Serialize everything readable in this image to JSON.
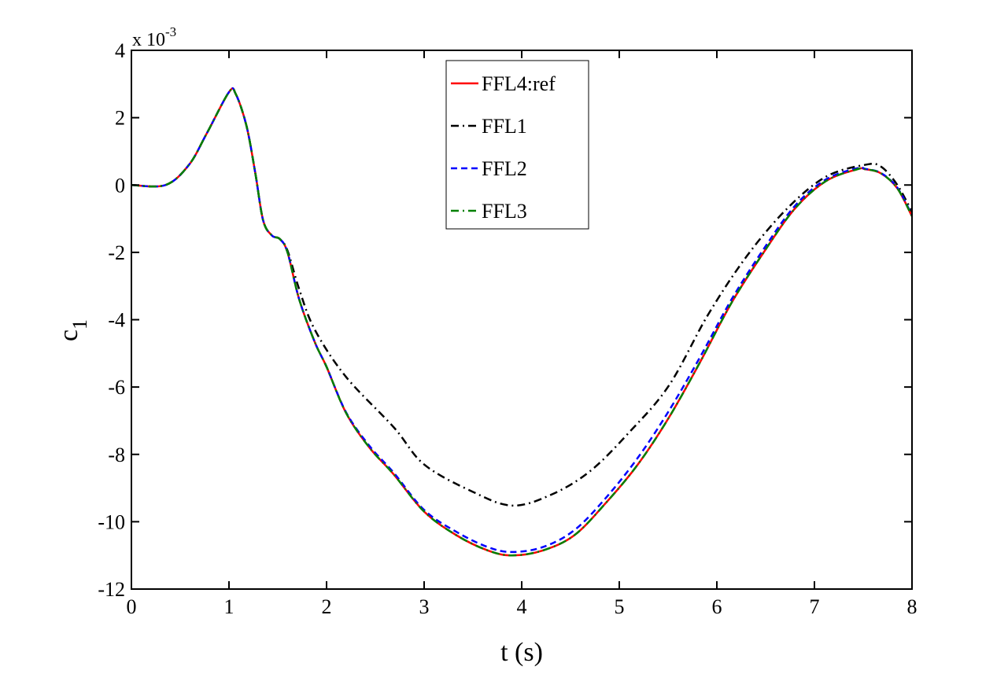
{
  "chart_data": {
    "type": "line",
    "title": "",
    "xlabel": "t (s)",
    "ylabel": "c",
    "ylabel_subscript": "1",
    "y_multiplier": {
      "prefix": "x 10",
      "exponent": "-3"
    },
    "xlim": [
      0,
      8
    ],
    "ylim": [
      -12,
      4
    ],
    "xticks": [
      0,
      1,
      2,
      3,
      4,
      5,
      6,
      7,
      8
    ],
    "yticks": [
      4,
      2,
      0,
      -2,
      -4,
      -6,
      -8,
      -10,
      -12
    ],
    "grid": false,
    "legend_placement": "top-center",
    "series": [
      {
        "name": "FFL4:ref",
        "color": "#ff0000",
        "style": "solid",
        "x": [
          0,
          0.35,
          0.59,
          0.77,
          1.0,
          1.07,
          1.18,
          1.27,
          1.35,
          1.44,
          1.52,
          1.6,
          1.72,
          1.88,
          2.0,
          2.2,
          2.44,
          2.69,
          3.0,
          3.33,
          3.65,
          3.9,
          4.22,
          4.54,
          4.86,
          5.19,
          5.51,
          5.83,
          6.15,
          6.48,
          6.8,
          7.12,
          7.44,
          7.52,
          7.68,
          7.85,
          8.0
        ],
        "y": [
          0,
          0,
          0.6,
          1.52,
          2.76,
          2.7,
          1.75,
          0.35,
          -1.05,
          -1.5,
          -1.6,
          -2.0,
          -3.4,
          -4.67,
          -5.4,
          -6.77,
          -7.8,
          -8.6,
          -9.7,
          -10.4,
          -10.85,
          -11.0,
          -10.85,
          -10.4,
          -9.45,
          -8.3,
          -6.9,
          -5.25,
          -3.5,
          -2.0,
          -0.7,
          0.12,
          0.47,
          0.47,
          0.35,
          -0.1,
          -0.93
        ]
      },
      {
        "name": "FFL1",
        "color": "#000000",
        "style": "dashdot",
        "x": [
          0,
          0.35,
          0.59,
          0.77,
          1.0,
          1.07,
          1.18,
          1.27,
          1.35,
          1.44,
          1.52,
          1.6,
          1.72,
          1.88,
          2.2,
          2.69,
          3.0,
          3.49,
          3.9,
          4.3,
          4.7,
          5.1,
          5.51,
          5.91,
          6.31,
          6.72,
          7.12,
          7.52,
          7.68,
          7.85,
          8.0
        ],
        "y": [
          0,
          0,
          0.6,
          1.52,
          2.76,
          2.7,
          1.75,
          0.35,
          -1.05,
          -1.5,
          -1.6,
          -1.95,
          -3.1,
          -4.3,
          -5.7,
          -7.2,
          -8.3,
          -9.1,
          -9.52,
          -9.2,
          -8.5,
          -7.35,
          -5.95,
          -3.85,
          -2.1,
          -0.7,
          0.25,
          0.6,
          0.55,
          0.0,
          -0.8
        ]
      },
      {
        "name": "FFL2",
        "color": "#0000ff",
        "style": "dashed",
        "x": [
          0,
          0.35,
          0.59,
          0.77,
          1.0,
          1.07,
          1.18,
          1.27,
          1.35,
          1.44,
          1.52,
          1.6,
          1.72,
          1.88,
          2.0,
          2.2,
          2.44,
          2.69,
          3.0,
          3.33,
          3.65,
          3.9,
          4.22,
          4.54,
          4.86,
          5.19,
          5.51,
          5.83,
          6.15,
          6.48,
          6.8,
          7.12,
          7.44,
          7.52,
          7.68,
          7.85,
          8.0
        ],
        "y": [
          0,
          0,
          0.6,
          1.52,
          2.76,
          2.7,
          1.75,
          0.35,
          -1.05,
          -1.5,
          -1.6,
          -2.0,
          -3.4,
          -4.67,
          -5.4,
          -6.75,
          -7.75,
          -8.55,
          -9.65,
          -10.3,
          -10.75,
          -10.9,
          -10.75,
          -10.25,
          -9.3,
          -8.1,
          -6.7,
          -5.1,
          -3.4,
          -1.9,
          -0.62,
          0.17,
          0.5,
          0.48,
          0.36,
          -0.08,
          -0.9
        ]
      },
      {
        "name": "FFL3",
        "color": "#008000",
        "style": "dashdot",
        "x": [
          0,
          0.35,
          0.59,
          0.77,
          1.0,
          1.07,
          1.18,
          1.27,
          1.35,
          1.44,
          1.52,
          1.6,
          1.72,
          1.88,
          2.0,
          2.2,
          2.44,
          2.69,
          3.0,
          3.33,
          3.65,
          3.9,
          4.22,
          4.54,
          4.86,
          5.19,
          5.51,
          5.83,
          6.15,
          6.48,
          6.8,
          7.12,
          7.44,
          7.52,
          7.68,
          7.85,
          8.0
        ],
        "y": [
          0,
          0,
          0.6,
          1.52,
          2.76,
          2.7,
          1.75,
          0.35,
          -1.05,
          -1.5,
          -1.6,
          -2.0,
          -3.4,
          -4.67,
          -5.4,
          -6.77,
          -7.8,
          -8.6,
          -9.7,
          -10.4,
          -10.85,
          -11.0,
          -10.85,
          -10.4,
          -9.45,
          -8.3,
          -6.9,
          -5.25,
          -3.5,
          -2.0,
          -0.7,
          0.12,
          0.47,
          0.47,
          0.35,
          -0.1,
          -0.93
        ]
      }
    ]
  }
}
